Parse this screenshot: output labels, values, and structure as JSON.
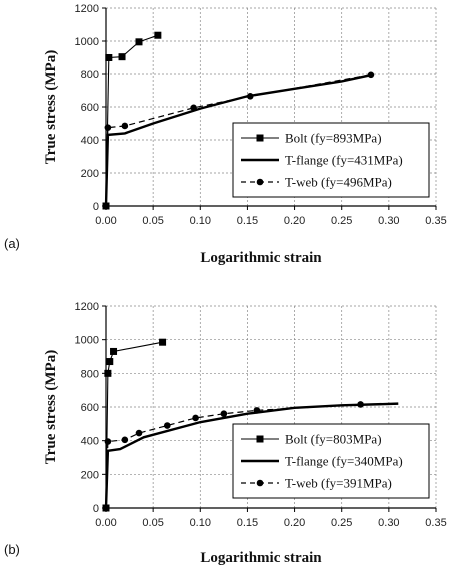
{
  "chart_data": [
    {
      "type": "line",
      "panel_label": "(a)",
      "xlabel": "Logarithmic strain",
      "ylabel": "True stress (MPa)",
      "xlim": [
        0,
        0.35
      ],
      "ylim": [
        0,
        1200
      ],
      "xticks": [
        "0.00",
        "0.05",
        "0.10",
        "0.15",
        "0.20",
        "0.25",
        "0.30",
        "0.35"
      ],
      "yticks": [
        "0",
        "200",
        "400",
        "600",
        "800",
        "1000",
        "1200"
      ],
      "grid": true,
      "legend_position": "bottom-right",
      "series": [
        {
          "name": "Bolt (fy=893MPa)",
          "style": "square-line",
          "color": "#000000",
          "points": [
            [
              0.0,
              0
            ],
            [
              0.003,
              900
            ],
            [
              0.017,
              905
            ],
            [
              0.035,
              995
            ],
            [
              0.055,
              1035
            ]
          ]
        },
        {
          "name": "T-flange (fy=431MPa)",
          "style": "thick-line",
          "color": "#000000",
          "points": [
            [
              0.0,
              0
            ],
            [
              0.002,
              431
            ],
            [
              0.02,
              440
            ],
            [
              0.05,
              500
            ],
            [
              0.1,
              590
            ],
            [
              0.15,
              665
            ],
            [
              0.2,
              710
            ],
            [
              0.25,
              755
            ],
            [
              0.283,
              795
            ]
          ]
        },
        {
          "name": "T-web (fy=496MPa)",
          "style": "dashed-circle",
          "color": "#000000",
          "points": [
            [
              0.0,
              0
            ],
            [
              0.002,
              475
            ],
            [
              0.02,
              485
            ],
            [
              0.093,
              595
            ],
            [
              0.153,
              665
            ],
            [
              0.281,
              795
            ]
          ]
        }
      ]
    },
    {
      "type": "line",
      "panel_label": "(b)",
      "xlabel": "Logarithmic strain",
      "ylabel": "True stress (MPa)",
      "xlim": [
        0,
        0.35
      ],
      "ylim": [
        0,
        1200
      ],
      "xticks": [
        "0.00",
        "0.05",
        "0.10",
        "0.15",
        "0.20",
        "0.25",
        "0.30",
        "0.35"
      ],
      "yticks": [
        "0",
        "200",
        "400",
        "600",
        "800",
        "1000",
        "1200"
      ],
      "grid": true,
      "legend_position": "bottom-right",
      "series": [
        {
          "name": "Bolt (fy=803MPa)",
          "style": "square-line",
          "color": "#000000",
          "points": [
            [
              0.0,
              0
            ],
            [
              0.002,
              800
            ],
            [
              0.004,
              870
            ],
            [
              0.008,
              930
            ],
            [
              0.06,
              985
            ]
          ]
        },
        {
          "name": "T-flange (fy=340MPa)",
          "style": "thick-line",
          "color": "#000000",
          "points": [
            [
              0.0,
              0
            ],
            [
              0.002,
              340
            ],
            [
              0.015,
              350
            ],
            [
              0.04,
              420
            ],
            [
              0.1,
              510
            ],
            [
              0.15,
              560
            ],
            [
              0.2,
              595
            ],
            [
              0.25,
              610
            ],
            [
              0.31,
              620
            ]
          ]
        },
        {
          "name": "T-web (fy=391MPa)",
          "style": "dashed-circle",
          "color": "#000000",
          "points": [
            [
              0.0,
              0
            ],
            [
              0.002,
              395
            ],
            [
              0.02,
              405
            ],
            [
              0.035,
              445
            ],
            [
              0.065,
              490
            ],
            [
              0.095,
              535
            ],
            [
              0.125,
              560
            ],
            [
              0.16,
              580
            ],
            [
              0.27,
              615
            ]
          ]
        }
      ]
    }
  ]
}
